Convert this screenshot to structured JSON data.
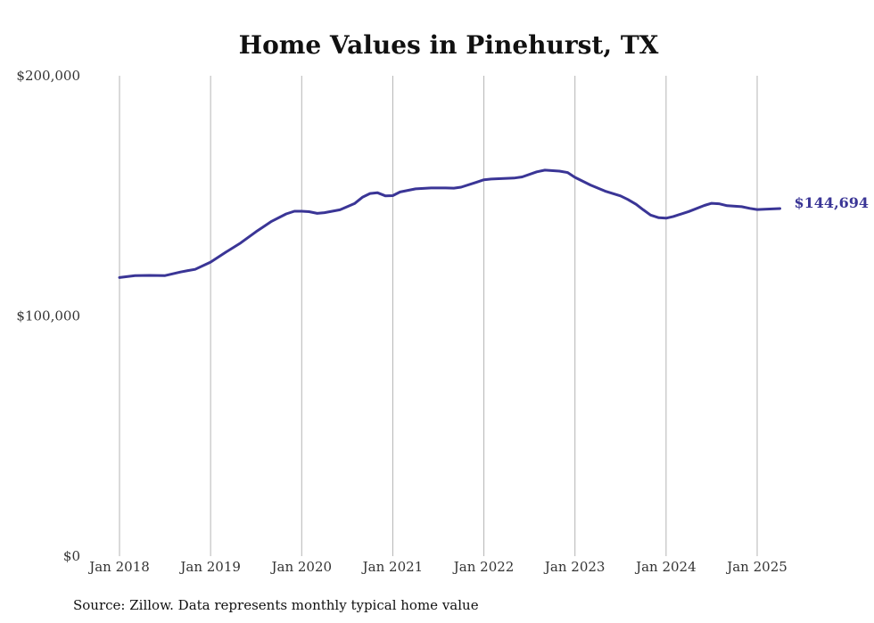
{
  "chart_data": {
    "type": "line",
    "title": "Home Values in Pinehurst, TX",
    "xlabel": "",
    "ylabel": "",
    "ylim": [
      0,
      200000
    ],
    "y_ticks": [
      {
        "value": 0,
        "label": "$0"
      },
      {
        "value": 100000,
        "label": "$100,000"
      },
      {
        "value": 200000,
        "label": "$200,000"
      }
    ],
    "x_ticks": [
      {
        "value": 2018.0,
        "label": "Jan 2018"
      },
      {
        "value": 2019.0,
        "label": "Jan 2019"
      },
      {
        "value": 2020.0,
        "label": "Jan 2020"
      },
      {
        "value": 2021.0,
        "label": "Jan 2021"
      },
      {
        "value": 2022.0,
        "label": "Jan 2022"
      },
      {
        "value": 2023.0,
        "label": "Jan 2023"
      },
      {
        "value": 2024.0,
        "label": "Jan 2024"
      },
      {
        "value": 2025.0,
        "label": "Jan 2025"
      }
    ],
    "xlim": [
      2017.55,
      2025.7
    ],
    "grid": "vertical",
    "legend": "none",
    "series": [
      {
        "color": "#3a3596",
        "x": [
          2018.0,
          2018.17,
          2018.33,
          2018.5,
          2018.67,
          2018.75,
          2018.83,
          2019.0,
          2019.17,
          2019.33,
          2019.5,
          2019.67,
          2019.83,
          2019.92,
          2020.0,
          2020.08,
          2020.17,
          2020.25,
          2020.42,
          2020.58,
          2020.67,
          2020.75,
          2020.83,
          2020.92,
          2021.0,
          2021.08,
          2021.25,
          2021.42,
          2021.58,
          2021.67,
          2021.75,
          2021.92,
          2022.0,
          2022.08,
          2022.33,
          2022.42,
          2022.58,
          2022.67,
          2022.83,
          2022.92,
          2023.0,
          2023.17,
          2023.33,
          2023.5,
          2023.58,
          2023.67,
          2023.75,
          2023.83,
          2023.92,
          2024.0,
          2024.08,
          2024.25,
          2024.42,
          2024.5,
          2024.58,
          2024.67,
          2024.83,
          2024.92,
          2025.0,
          2025.08,
          2025.25
        ],
        "values": [
          116000,
          116800,
          116900,
          116800,
          118300,
          118900,
          119400,
          122400,
          126600,
          130400,
          135100,
          139400,
          142500,
          143600,
          143600,
          143400,
          142700,
          143000,
          144200,
          146800,
          149500,
          151000,
          151300,
          150000,
          150100,
          151600,
          152900,
          153300,
          153300,
          153200,
          153600,
          155700,
          156700,
          157000,
          157400,
          157900,
          160000,
          160700,
          160300,
          159700,
          157700,
          154500,
          152000,
          150000,
          148500,
          146500,
          144200,
          142000,
          140900,
          140700,
          141400,
          143500,
          146000,
          146900,
          146700,
          145900,
          145500,
          144800,
          144300,
          144400,
          144694
        ],
        "end_label": "$144,694"
      }
    ],
    "source": "Source: Zillow. Data represents monthly typical home value"
  }
}
